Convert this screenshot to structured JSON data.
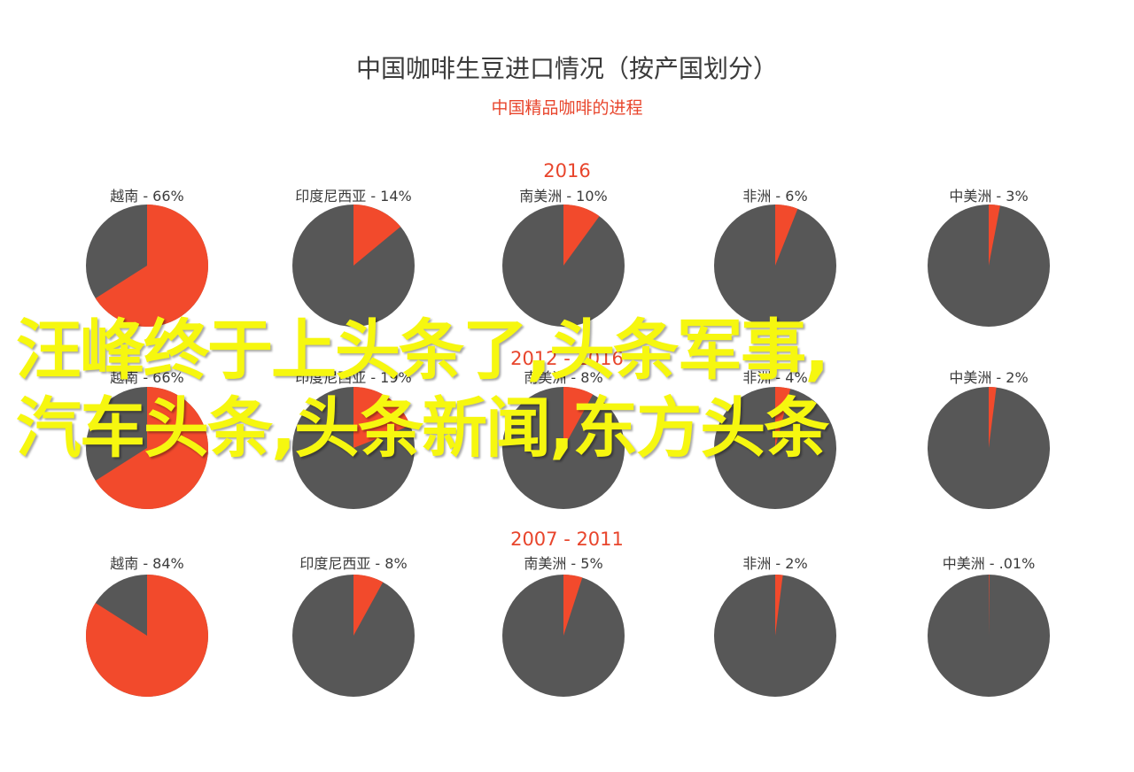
{
  "title": "中国咖啡生豆进口情况（按产国划分）",
  "subtitle": "中国精品咖啡的进程",
  "colors": {
    "share": "#f24a2c",
    "rest": "#575757",
    "title": "#3b3b3b",
    "accent": "#e8452c"
  },
  "chart_data": [
    {
      "type": "pie",
      "title": "2016",
      "categories": [
        "越南",
        "印度尼西亚",
        "南美洲",
        "非洲",
        "中美洲"
      ],
      "labels": [
        "越南 - 66%",
        "印度尼西亚 - 14%",
        "南美洲  - 10%",
        "非洲 - 6%",
        "中美洲  - 3%"
      ],
      "values": [
        66,
        14,
        10,
        6,
        3
      ]
    },
    {
      "type": "pie",
      "title": "2012 - 2016",
      "categories": [
        "越南",
        "印度尼西亚",
        "南美洲",
        "非洲",
        "中美洲"
      ],
      "labels": [
        "越南 - 66%",
        "印度尼西亚 - 19%",
        "南美洲 - 8%",
        "非洲 - 4%",
        "中美洲  - 2%"
      ],
      "values": [
        66,
        19,
        8,
        4,
        2
      ]
    },
    {
      "type": "pie",
      "title": "2007 - 2011",
      "categories": [
        "越南",
        "印度尼西亚",
        "南美洲",
        "非洲",
        "中美洲"
      ],
      "labels": [
        "越南 - 84%",
        "印度尼西亚 - 8%",
        "南美洲  - 5%",
        "非洲  - 2%",
        "中美洲  - .01%"
      ],
      "values": [
        84,
        8,
        5,
        2,
        0.01
      ]
    }
  ],
  "watermark": {
    "line1": "汪峰终于上头条了,头条军事,",
    "line2": "汽车头条,头条新闻,东方头条"
  }
}
